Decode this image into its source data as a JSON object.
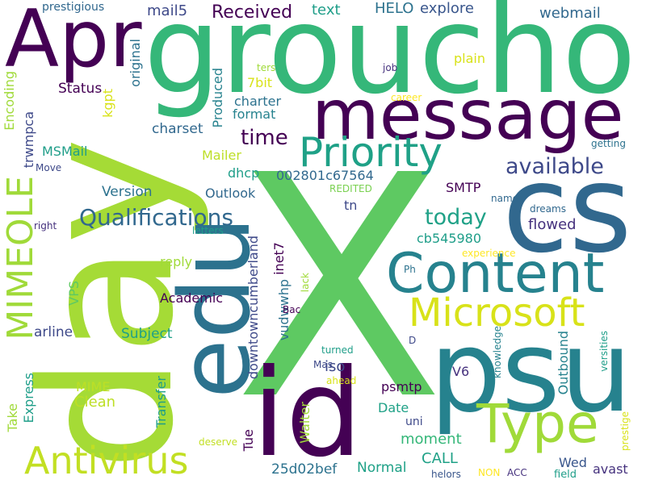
{
  "words": [
    {
      "id": "x",
      "text": "X",
      "color": "#5ec962"
    },
    {
      "id": "day",
      "text": "day",
      "color": "#a5db36"
    },
    {
      "id": "groucho",
      "text": "groucho",
      "color": "#35b779"
    },
    {
      "id": "apr",
      "text": "Apr",
      "color": "#440154"
    },
    {
      "id": "cs",
      "text": "cs",
      "color": "#31688e"
    },
    {
      "id": "psu",
      "text": "psu",
      "color": "#26828e"
    },
    {
      "id": "id",
      "text": "id",
      "color": "#440154"
    },
    {
      "id": "edu",
      "text": "edu",
      "color": "#2c728e"
    },
    {
      "id": "message",
      "text": "message",
      "color": "#440154"
    },
    {
      "id": "content",
      "text": "Content",
      "color": "#26828e"
    },
    {
      "id": "type",
      "text": "Type",
      "color": "#a0da39"
    },
    {
      "id": "priority",
      "text": "Priority",
      "color": "#1fa187"
    },
    {
      "id": "microsoft",
      "text": "Microsoft",
      "color": "#d8e219"
    },
    {
      "id": "antivirus",
      "text": "Antivirus",
      "color": "#c2df23"
    },
    {
      "id": "mimeole",
      "text": "MIMEOLE",
      "color": "#a0da39"
    },
    {
      "id": "qualifications",
      "text": "Qualifications",
      "color": "#31688e"
    },
    {
      "id": "available",
      "text": "available",
      "color": "#3e4989"
    },
    {
      "id": "today",
      "text": "today",
      "color": "#1fa187"
    },
    {
      "id": "time",
      "text": "time",
      "color": "#440154"
    },
    {
      "id": "received",
      "text": "Received",
      "color": "#440154"
    },
    {
      "id": "mail5",
      "text": "mail5",
      "color": "#3e4989"
    },
    {
      "id": "helo",
      "text": "HELO",
      "color": "#2c728e"
    },
    {
      "id": "explore",
      "text": "explore",
      "color": "#39568c"
    },
    {
      "id": "webmail",
      "text": "webmail",
      "color": "#31688e"
    },
    {
      "id": "text",
      "text": "text",
      "color": "#1f9e89"
    },
    {
      "id": "prestigious",
      "text": "prestigious",
      "color": "#31688e"
    },
    {
      "id": "status",
      "text": "Status",
      "color": "#440154"
    },
    {
      "id": "encoding",
      "text": "Encoding",
      "color": "#a0da39"
    },
    {
      "id": "trwmpca",
      "text": "trwmpca",
      "color": "#3e4989"
    },
    {
      "id": "msmail",
      "text": "MSMail",
      "color": "#1f9e89"
    },
    {
      "id": "move",
      "text": "Move",
      "color": "#3e4989"
    },
    {
      "id": "right",
      "text": "right",
      "color": "#46327e"
    },
    {
      "id": "vps",
      "text": "VPS",
      "color": "#5ec962"
    },
    {
      "id": "arline",
      "text": "arline",
      "color": "#3e4989"
    },
    {
      "id": "subject",
      "text": "Subject",
      "color": "#1fa187"
    },
    {
      "id": "mime",
      "text": "MIME",
      "color": "#bddf26"
    },
    {
      "id": "clean",
      "text": "Clean",
      "color": "#bddf26"
    },
    {
      "id": "express",
      "text": "Express",
      "color": "#1f9e89"
    },
    {
      "id": "take",
      "text": "Take",
      "color": "#a0da39"
    },
    {
      "id": "transfer",
      "text": "Transfer",
      "color": "#1f9e89"
    },
    {
      "id": "original",
      "text": "original",
      "color": "#2c728e"
    },
    {
      "id": "kgpt",
      "text": "kgpt",
      "color": "#d8e219"
    },
    {
      "id": "produced",
      "text": "Produced",
      "color": "#26828e"
    },
    {
      "id": "charter",
      "text": "charter",
      "color": "#2c728e"
    },
    {
      "id": "format",
      "text": "format",
      "color": "#26828e"
    },
    {
      "id": "charset",
      "text": "charset",
      "color": "#31688e"
    },
    {
      "id": "mailer",
      "text": "Mailer",
      "color": "#bddf26"
    },
    {
      "id": "dhcp",
      "text": "dhcp",
      "color": "#1f9e89"
    },
    {
      "id": "version",
      "text": "Version",
      "color": "#2c728e"
    },
    {
      "id": "outlook",
      "text": "Outlook",
      "color": "#31688e"
    },
    {
      "id": "b7bit",
      "text": "7bit",
      "color": "#d8e219"
    },
    {
      "id": "ters",
      "text": "ters",
      "color": "#a0da39"
    },
    {
      "id": "plain",
      "text": "plain",
      "color": "#d8e219"
    },
    {
      "id": "job",
      "text": "job",
      "color": "#46327e"
    },
    {
      "id": "career",
      "text": "career",
      "color": "#fde725"
    },
    {
      "id": "hash1",
      "text": "002801c67564",
      "color": "#31688e"
    },
    {
      "id": "smtp",
      "text": "SMTP",
      "color": "#440154"
    },
    {
      "id": "redited",
      "text": "REDITED",
      "color": "#7ad151"
    },
    {
      "id": "tn",
      "text": "tn",
      "color": "#3e4989"
    },
    {
      "id": "flowed",
      "text": "flowed",
      "color": "#46327e"
    },
    {
      "id": "getting",
      "text": "getting",
      "color": "#2c728e"
    },
    {
      "id": "cb545980",
      "text": "cb545980",
      "color": "#1f9e89"
    },
    {
      "id": "dreams",
      "text": "dreams",
      "color": "#31688e"
    },
    {
      "id": "name",
      "text": "name",
      "color": "#31688e"
    },
    {
      "id": "letters",
      "text": "letters",
      "color": "#1f9e89"
    },
    {
      "id": "experience",
      "text": "experience",
      "color": "#fde725"
    },
    {
      "id": "reply",
      "text": "reply",
      "color": "#a0da39"
    },
    {
      "id": "academic",
      "text": "Academic",
      "color": "#440154"
    },
    {
      "id": "inet7",
      "text": "inet7",
      "color": "#440154"
    },
    {
      "id": "downtown",
      "text": "downtowncumberland",
      "color": "#3e4989"
    },
    {
      "id": "vudwwhp",
      "text": "vudwwhp",
      "color": "#2c728e"
    },
    {
      "id": "lack",
      "text": "lack",
      "color": "#a0da39"
    },
    {
      "id": "bac",
      "text": "Bac",
      "color": "#440154"
    },
    {
      "id": "ph",
      "text": "Ph",
      "color": "#2c728e"
    },
    {
      "id": "d",
      "text": "D",
      "color": "#3e4989"
    },
    {
      "id": "walter",
      "text": "Walter",
      "color": "#a0da39"
    },
    {
      "id": "iso",
      "text": "iso",
      "color": "#3e4989"
    },
    {
      "id": "turned",
      "text": "turned",
      "color": "#1f9e89"
    },
    {
      "id": "mas",
      "text": "Mas",
      "color": "#3e4989"
    },
    {
      "id": "ahead",
      "text": "ahead",
      "color": "#d8e219"
    },
    {
      "id": "tue",
      "text": "Tue",
      "color": "#440154"
    },
    {
      "id": "date",
      "text": "Date",
      "color": "#1fa187"
    },
    {
      "id": "psmtp",
      "text": "psmtp",
      "color": "#440154"
    },
    {
      "id": "v6",
      "text": "V6",
      "color": "#46327e"
    },
    {
      "id": "uni",
      "text": "uni",
      "color": "#3e4989"
    },
    {
      "id": "knowledge",
      "text": "knowledge",
      "color": "#26828e"
    },
    {
      "id": "outbound",
      "text": "Outbound",
      "color": "#26828e"
    },
    {
      "id": "versities",
      "text": "versities",
      "color": "#1f9e89"
    },
    {
      "id": "prestige",
      "text": "prestige",
      "color": "#d8e219"
    },
    {
      "id": "moment",
      "text": "moment",
      "color": "#35b779"
    },
    {
      "id": "call",
      "text": "CALL",
      "color": "#1fa187"
    },
    {
      "id": "hash2",
      "text": "25d02bef",
      "color": "#2c728e"
    },
    {
      "id": "normal",
      "text": "Normal",
      "color": "#1fa187"
    },
    {
      "id": "deserve",
      "text": "deserve",
      "color": "#c2df23"
    },
    {
      "id": "helors",
      "text": "helors",
      "color": "#39568c"
    },
    {
      "id": "non",
      "text": "NON",
      "color": "#fde725"
    },
    {
      "id": "acc",
      "text": "ACC",
      "color": "#46327e"
    },
    {
      "id": "wed",
      "text": "Wed",
      "color": "#39568c"
    },
    {
      "id": "field",
      "text": "field",
      "color": "#1f9e89"
    },
    {
      "id": "avast",
      "text": "avast",
      "color": "#46327e"
    }
  ]
}
